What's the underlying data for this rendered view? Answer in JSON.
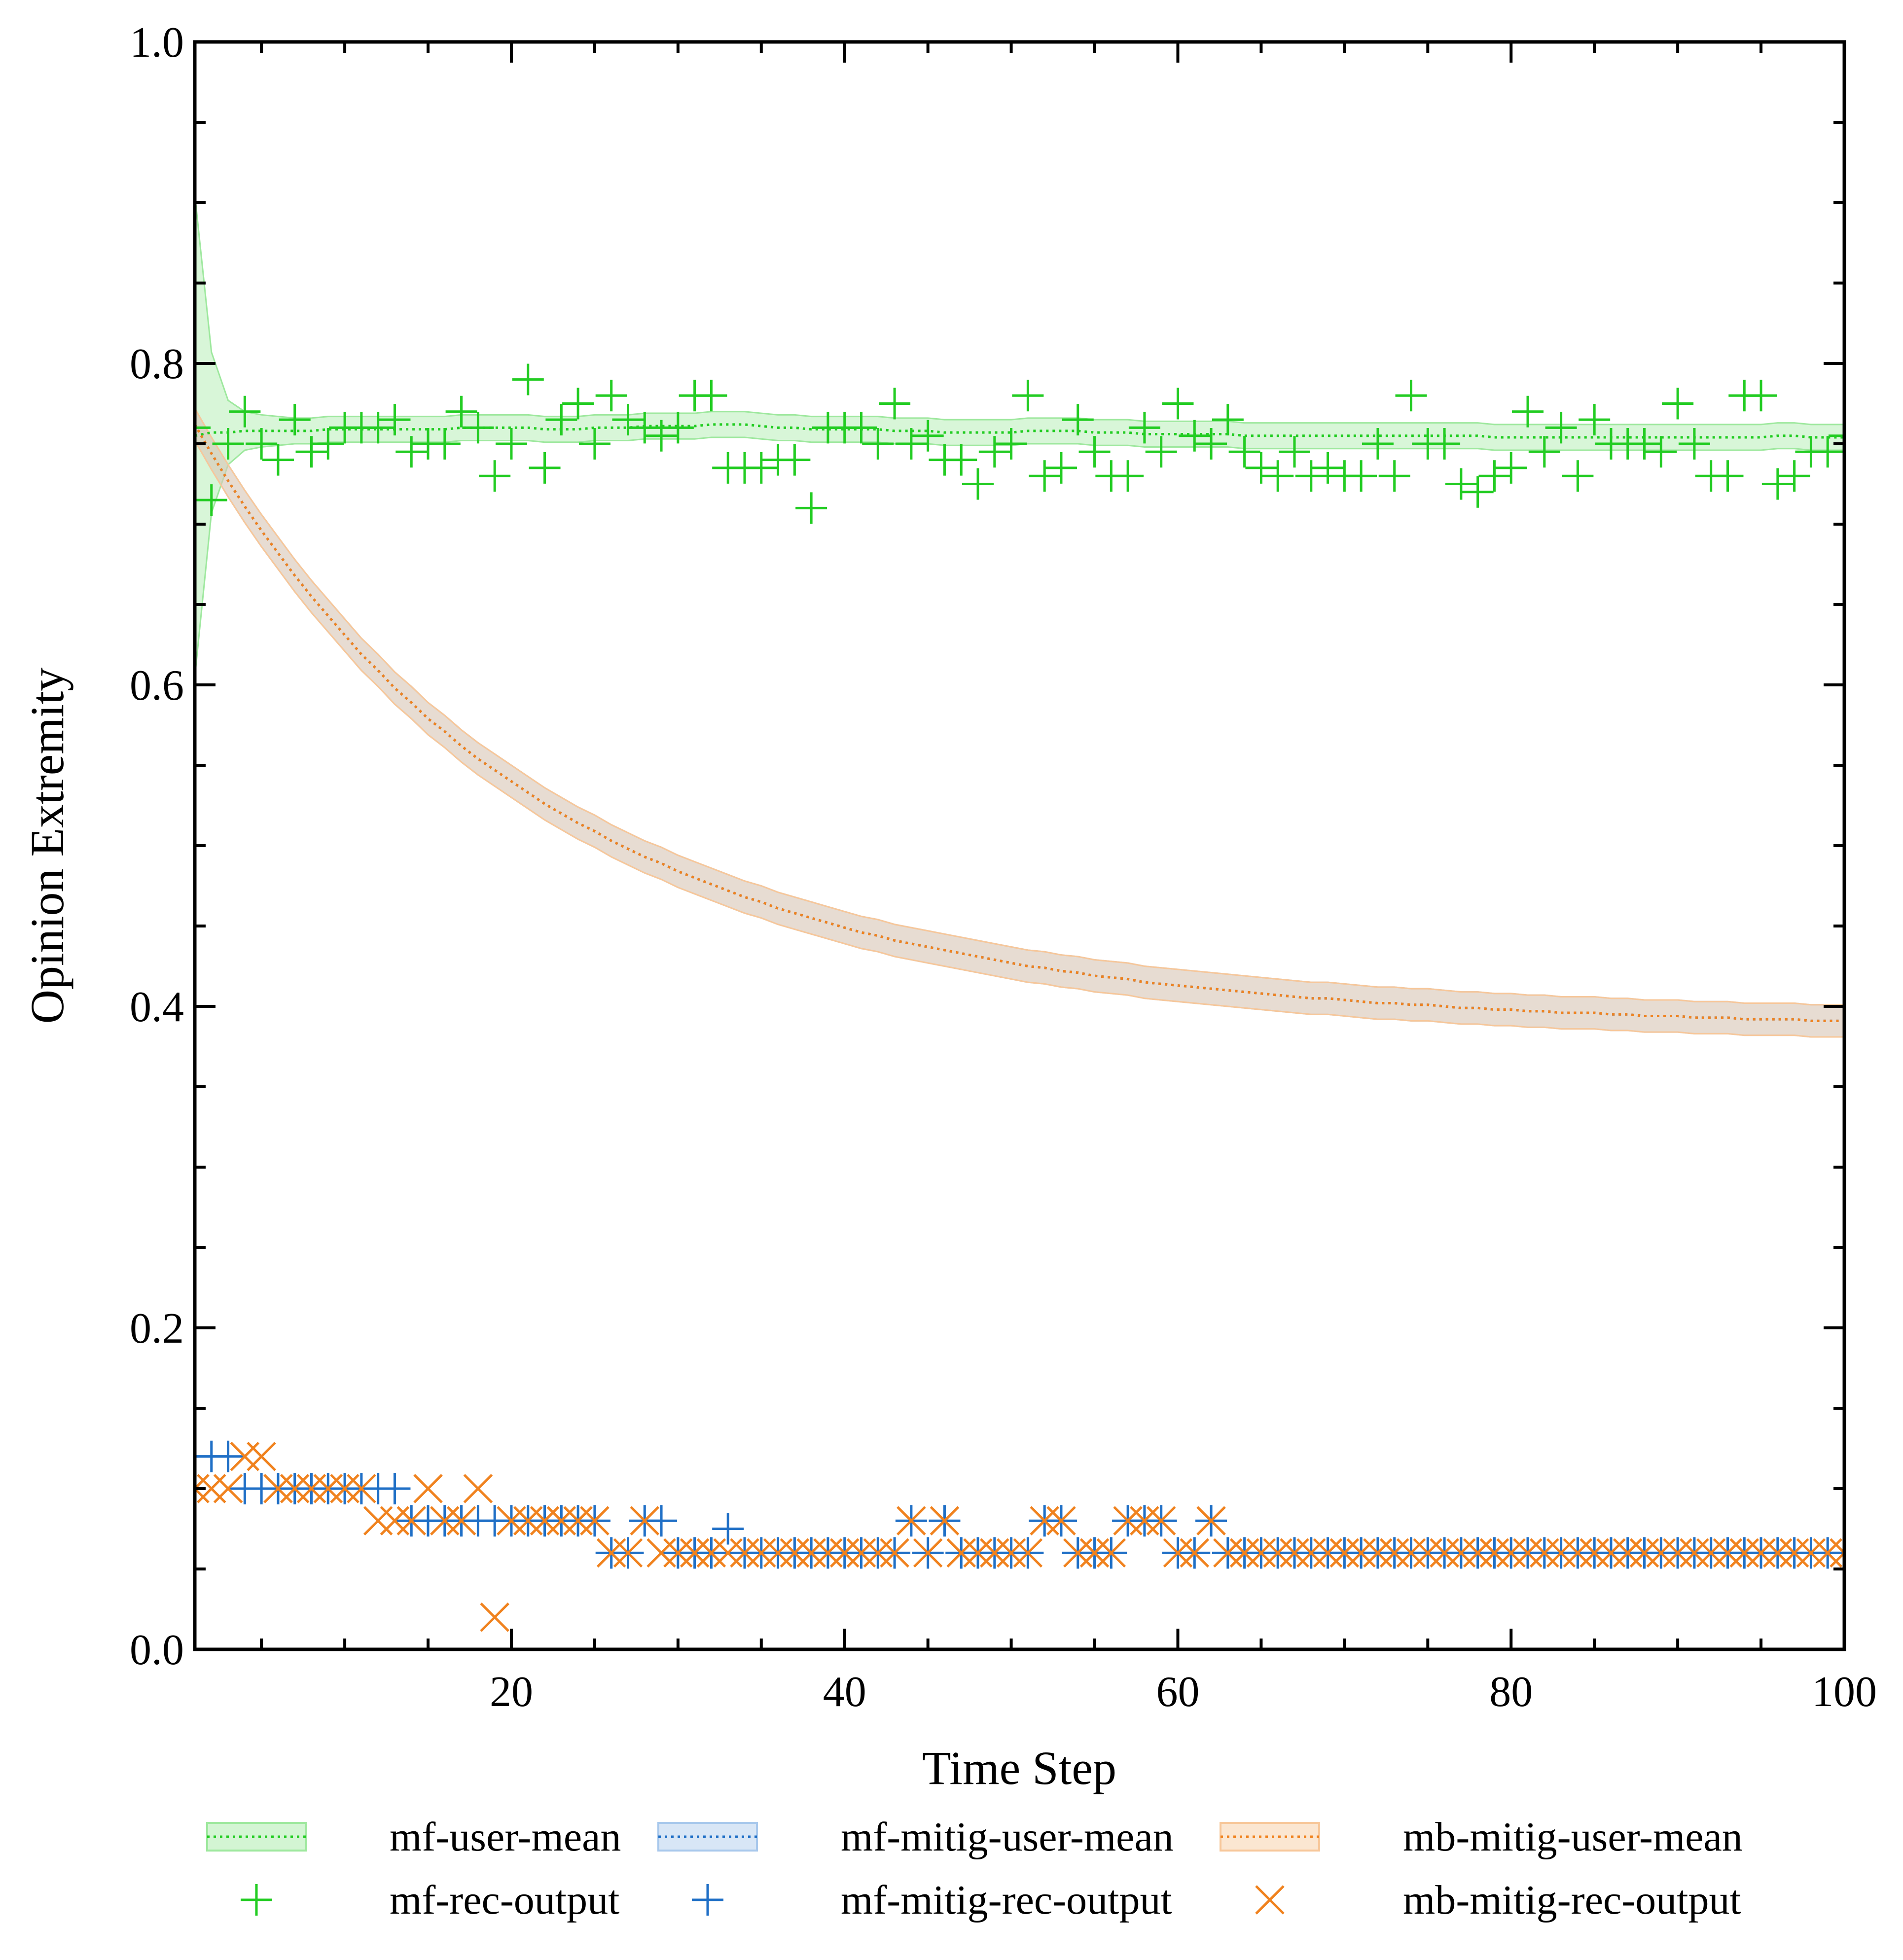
{
  "chart_data": {
    "type": "line",
    "xlabel": "Time Step",
    "ylabel": "Opinion Extremity",
    "xlim": [
      1,
      100
    ],
    "ylim": [
      0.0,
      1.0
    ],
    "xticks": [
      20,
      40,
      60,
      80,
      100
    ],
    "xtick_labels": [
      "20",
      "40",
      "60",
      "80",
      "100"
    ],
    "yticks": [
      0.0,
      0.2,
      0.4,
      0.6,
      0.8,
      1.0
    ],
    "ytick_labels": [
      "0.0",
      "0.2",
      "0.4",
      "0.6",
      "0.8",
      "1.0"
    ],
    "legend_position": "bottom",
    "legend": [
      {
        "label": "mf-user-mean",
        "kind": "band-line",
        "color": "#22cc22"
      },
      {
        "label": "mf-mitig-user-mean",
        "kind": "band-line",
        "color": "#1f6fc6"
      },
      {
        "label": "mb-mitig-user-mean",
        "kind": "band-line",
        "color": "#f0821e"
      },
      {
        "label": "mf-rec-output",
        "kind": "plus",
        "color": "#22cc22"
      },
      {
        "label": "mf-mitig-rec-output",
        "kind": "plus",
        "color": "#1f6fc6"
      },
      {
        "label": "mb-mitig-rec-output",
        "kind": "x",
        "color": "#f0821e"
      }
    ],
    "x": [
      1,
      2,
      3,
      4,
      5,
      6,
      7,
      8,
      9,
      10,
      11,
      12,
      13,
      14,
      15,
      16,
      17,
      18,
      19,
      20,
      21,
      22,
      23,
      24,
      25,
      26,
      27,
      28,
      29,
      30,
      31,
      32,
      33,
      34,
      35,
      36,
      37,
      38,
      39,
      40,
      41,
      42,
      43,
      44,
      45,
      46,
      47,
      48,
      49,
      50,
      51,
      52,
      53,
      54,
      55,
      56,
      57,
      58,
      59,
      60,
      61,
      62,
      63,
      64,
      65,
      66,
      67,
      68,
      69,
      70,
      71,
      72,
      73,
      74,
      75,
      76,
      77,
      78,
      79,
      80,
      81,
      82,
      83,
      84,
      85,
      86,
      87,
      88,
      89,
      90,
      91,
      92,
      93,
      94,
      95,
      96,
      97,
      98,
      99,
      100
    ],
    "series": [
      {
        "name": "mf-user-mean",
        "role": "mean-line",
        "color": "#22cc22",
        "band_color": "#9ee89e",
        "values": [
          0.755,
          0.757,
          0.757,
          0.758,
          0.758,
          0.758,
          0.758,
          0.758,
          0.759,
          0.759,
          0.759,
          0.759,
          0.759,
          0.759,
          0.759,
          0.759,
          0.76,
          0.76,
          0.76,
          0.76,
          0.76,
          0.759,
          0.759,
          0.759,
          0.76,
          0.76,
          0.76,
          0.761,
          0.761,
          0.761,
          0.761,
          0.762,
          0.762,
          0.762,
          0.761,
          0.76,
          0.76,
          0.759,
          0.759,
          0.759,
          0.759,
          0.759,
          0.758,
          0.758,
          0.758,
          0.757,
          0.757,
          0.757,
          0.757,
          0.757,
          0.758,
          0.758,
          0.758,
          0.758,
          0.757,
          0.757,
          0.757,
          0.756,
          0.756,
          0.756,
          0.756,
          0.756,
          0.756,
          0.755,
          0.755,
          0.755,
          0.755,
          0.755,
          0.755,
          0.755,
          0.755,
          0.755,
          0.755,
          0.755,
          0.755,
          0.755,
          0.755,
          0.755,
          0.754,
          0.754,
          0.754,
          0.754,
          0.754,
          0.754,
          0.754,
          0.754,
          0.754,
          0.754,
          0.754,
          0.754,
          0.754,
          0.754,
          0.754,
          0.754,
          0.754,
          0.755,
          0.755,
          0.754,
          0.754,
          0.754
        ],
        "band_halfwidth": [
          0.15,
          0.05,
          0.02,
          0.012,
          0.01,
          0.009,
          0.008,
          0.008,
          0.008,
          0.008,
          0.008,
          0.008,
          0.008,
          0.008,
          0.008,
          0.008,
          0.008,
          0.008,
          0.008,
          0.008,
          0.008,
          0.008,
          0.008,
          0.008,
          0.008,
          0.008,
          0.008,
          0.008,
          0.008,
          0.008,
          0.008,
          0.008,
          0.008,
          0.008,
          0.008,
          0.008,
          0.008,
          0.008,
          0.008,
          0.008,
          0.008,
          0.008,
          0.008,
          0.008,
          0.008,
          0.008,
          0.008,
          0.008,
          0.008,
          0.008,
          0.008,
          0.008,
          0.008,
          0.008,
          0.008,
          0.008,
          0.008,
          0.008,
          0.008,
          0.008,
          0.008,
          0.008,
          0.008,
          0.008,
          0.008,
          0.008,
          0.008,
          0.008,
          0.008,
          0.008,
          0.008,
          0.008,
          0.008,
          0.008,
          0.008,
          0.008,
          0.008,
          0.008,
          0.008,
          0.008,
          0.008,
          0.008,
          0.008,
          0.008,
          0.008,
          0.008,
          0.008,
          0.008,
          0.008,
          0.008,
          0.008,
          0.008,
          0.008,
          0.008,
          0.008,
          0.008,
          0.008,
          0.008,
          0.008,
          0.008
        ]
      },
      {
        "name": "mf-mitig-user-mean",
        "role": "mean-line",
        "color": "#1f6fc6",
        "band_color": "#a8c8ec",
        "values": [
          0.762,
          0.744,
          0.727,
          0.711,
          0.696,
          0.682,
          0.668,
          0.655,
          0.643,
          0.631,
          0.619,
          0.609,
          0.598,
          0.589,
          0.579,
          0.571,
          0.562,
          0.554,
          0.547,
          0.54,
          0.533,
          0.526,
          0.52,
          0.514,
          0.509,
          0.503,
          0.498,
          0.493,
          0.489,
          0.484,
          0.48,
          0.476,
          0.472,
          0.468,
          0.465,
          0.461,
          0.458,
          0.455,
          0.452,
          0.449,
          0.446,
          0.444,
          0.441,
          0.439,
          0.437,
          0.435,
          0.433,
          0.431,
          0.429,
          0.427,
          0.425,
          0.424,
          0.422,
          0.421,
          0.419,
          0.418,
          0.417,
          0.415,
          0.414,
          0.413,
          0.412,
          0.411,
          0.41,
          0.409,
          0.408,
          0.407,
          0.406,
          0.405,
          0.405,
          0.404,
          0.403,
          0.402,
          0.402,
          0.401,
          0.401,
          0.4,
          0.399,
          0.399,
          0.398,
          0.398,
          0.397,
          0.397,
          0.396,
          0.396,
          0.396,
          0.395,
          0.395,
          0.394,
          0.394,
          0.394,
          0.393,
          0.393,
          0.393,
          0.392,
          0.392,
          0.392,
          0.392,
          0.391,
          0.391,
          0.391
        ],
        "band_halfwidth": [
          0.01,
          0.01,
          0.01,
          0.01,
          0.01,
          0.01,
          0.01,
          0.01,
          0.01,
          0.01,
          0.01,
          0.01,
          0.01,
          0.01,
          0.01,
          0.01,
          0.01,
          0.01,
          0.01,
          0.01,
          0.01,
          0.01,
          0.01,
          0.01,
          0.01,
          0.01,
          0.01,
          0.01,
          0.01,
          0.01,
          0.01,
          0.01,
          0.01,
          0.01,
          0.01,
          0.01,
          0.01,
          0.01,
          0.01,
          0.01,
          0.01,
          0.01,
          0.01,
          0.01,
          0.01,
          0.01,
          0.01,
          0.01,
          0.01,
          0.01,
          0.01,
          0.01,
          0.01,
          0.01,
          0.01,
          0.01,
          0.01,
          0.01,
          0.01,
          0.01,
          0.01,
          0.01,
          0.01,
          0.01,
          0.01,
          0.01,
          0.01,
          0.01,
          0.01,
          0.01,
          0.01,
          0.01,
          0.01,
          0.01,
          0.01,
          0.01,
          0.01,
          0.01,
          0.01,
          0.01,
          0.01,
          0.01,
          0.01,
          0.01,
          0.01,
          0.01,
          0.01,
          0.01,
          0.01,
          0.01,
          0.01,
          0.01,
          0.01,
          0.01,
          0.01,
          0.01,
          0.01,
          0.01,
          0.01,
          0.01
        ]
      },
      {
        "name": "mb-mitig-user-mean",
        "role": "mean-line",
        "color": "#f0821e",
        "band_color": "#f7c79a",
        "values": [
          0.762,
          0.744,
          0.727,
          0.711,
          0.696,
          0.682,
          0.668,
          0.655,
          0.643,
          0.631,
          0.619,
          0.609,
          0.598,
          0.589,
          0.579,
          0.571,
          0.562,
          0.554,
          0.547,
          0.54,
          0.533,
          0.526,
          0.52,
          0.514,
          0.509,
          0.503,
          0.498,
          0.493,
          0.489,
          0.484,
          0.48,
          0.476,
          0.472,
          0.468,
          0.465,
          0.461,
          0.458,
          0.455,
          0.452,
          0.449,
          0.446,
          0.444,
          0.441,
          0.439,
          0.437,
          0.435,
          0.433,
          0.431,
          0.429,
          0.427,
          0.425,
          0.424,
          0.422,
          0.421,
          0.419,
          0.418,
          0.417,
          0.415,
          0.414,
          0.413,
          0.412,
          0.411,
          0.41,
          0.409,
          0.408,
          0.407,
          0.406,
          0.405,
          0.405,
          0.404,
          0.403,
          0.402,
          0.402,
          0.401,
          0.401,
          0.4,
          0.399,
          0.399,
          0.398,
          0.398,
          0.397,
          0.397,
          0.396,
          0.396,
          0.396,
          0.395,
          0.395,
          0.394,
          0.394,
          0.394,
          0.393,
          0.393,
          0.393,
          0.392,
          0.392,
          0.392,
          0.392,
          0.391,
          0.391,
          0.391
        ],
        "band_halfwidth": [
          0.01,
          0.01,
          0.01,
          0.01,
          0.01,
          0.01,
          0.01,
          0.01,
          0.01,
          0.01,
          0.01,
          0.01,
          0.01,
          0.01,
          0.01,
          0.01,
          0.01,
          0.01,
          0.01,
          0.01,
          0.01,
          0.01,
          0.01,
          0.01,
          0.01,
          0.01,
          0.01,
          0.01,
          0.01,
          0.01,
          0.01,
          0.01,
          0.01,
          0.01,
          0.01,
          0.01,
          0.01,
          0.01,
          0.01,
          0.01,
          0.01,
          0.01,
          0.01,
          0.01,
          0.01,
          0.01,
          0.01,
          0.01,
          0.01,
          0.01,
          0.01,
          0.01,
          0.01,
          0.01,
          0.01,
          0.01,
          0.01,
          0.01,
          0.01,
          0.01,
          0.01,
          0.01,
          0.01,
          0.01,
          0.01,
          0.01,
          0.01,
          0.01,
          0.01,
          0.01,
          0.01,
          0.01,
          0.01,
          0.01,
          0.01,
          0.01,
          0.01,
          0.01,
          0.01,
          0.01,
          0.01,
          0.01,
          0.01,
          0.01,
          0.01,
          0.01,
          0.01,
          0.01,
          0.01,
          0.01,
          0.01,
          0.01,
          0.01,
          0.01,
          0.01,
          0.01,
          0.01,
          0.01,
          0.01,
          0.01
        ]
      },
      {
        "name": "mf-rec-output",
        "role": "markers",
        "marker": "plus",
        "color": "#22cc22",
        "values": [
          0.76,
          0.715,
          0.75,
          0.77,
          0.75,
          0.74,
          0.765,
          0.745,
          0.75,
          0.76,
          0.76,
          0.76,
          0.765,
          0.745,
          0.75,
          0.75,
          0.77,
          0.76,
          0.73,
          0.75,
          0.79,
          0.735,
          0.765,
          0.775,
          0.75,
          0.78,
          0.765,
          0.76,
          0.755,
          0.76,
          0.78,
          0.78,
          0.735,
          0.735,
          0.735,
          0.74,
          0.74,
          0.71,
          0.76,
          0.76,
          0.76,
          0.75,
          0.775,
          0.75,
          0.755,
          0.74,
          0.74,
          0.725,
          0.745,
          0.75,
          0.78,
          0.73,
          0.735,
          0.765,
          0.745,
          0.73,
          0.73,
          0.76,
          0.745,
          0.775,
          0.755,
          0.75,
          0.765,
          0.745,
          0.735,
          0.73,
          0.745,
          0.73,
          0.735,
          0.73,
          0.73,
          0.75,
          0.73,
          0.78,
          0.75,
          0.75,
          0.725,
          0.72,
          0.73,
          0.735,
          0.77,
          0.745,
          0.76,
          0.73,
          0.765,
          0.75,
          0.75,
          0.75,
          0.745,
          0.775,
          0.75,
          0.73,
          0.73,
          0.78,
          0.78,
          0.725,
          0.73,
          0.745,
          0.745,
          0.755
        ]
      },
      {
        "name": "mf-mitig-rec-output",
        "role": "markers",
        "marker": "plus",
        "color": "#1f6fc6",
        "values": [
          0.12,
          0.12,
          0.12,
          0.1,
          0.1,
          0.1,
          0.1,
          0.1,
          0.1,
          0.1,
          0.1,
          0.1,
          0.1,
          0.08,
          0.08,
          0.08,
          0.08,
          0.08,
          0.08,
          0.08,
          0.08,
          0.08,
          0.08,
          0.08,
          0.08,
          0.06,
          0.06,
          0.08,
          0.08,
          0.06,
          0.06,
          0.06,
          0.075,
          0.06,
          0.06,
          0.06,
          0.06,
          0.06,
          0.06,
          0.06,
          0.06,
          0.06,
          0.06,
          0.08,
          0.06,
          0.08,
          0.06,
          0.06,
          0.06,
          0.06,
          0.06,
          0.08,
          0.08,
          0.06,
          0.06,
          0.06,
          0.08,
          0.08,
          0.08,
          0.06,
          0.06,
          0.08,
          0.06,
          0.06,
          0.06,
          0.06,
          0.06,
          0.06,
          0.06,
          0.06,
          0.06,
          0.06,
          0.06,
          0.06,
          0.06,
          0.06,
          0.06,
          0.06,
          0.06,
          0.06,
          0.06,
          0.06,
          0.06,
          0.06,
          0.06,
          0.06,
          0.06,
          0.06,
          0.06,
          0.06,
          0.06,
          0.06,
          0.06,
          0.06,
          0.06,
          0.06,
          0.06,
          0.06,
          0.06,
          0.06
        ]
      },
      {
        "name": "mb-mitig-rec-output",
        "role": "markers",
        "marker": "x",
        "color": "#f0821e",
        "values": [
          0.1,
          0.1,
          0.1,
          0.12,
          0.12,
          0.1,
          0.1,
          0.1,
          0.1,
          0.1,
          0.1,
          0.08,
          0.08,
          0.08,
          0.1,
          0.08,
          0.08,
          0.1,
          0.02,
          0.08,
          0.08,
          0.08,
          0.08,
          0.08,
          0.08,
          0.06,
          0.06,
          0.08,
          0.06,
          0.06,
          0.06,
          0.06,
          0.06,
          0.06,
          0.06,
          0.06,
          0.06,
          0.06,
          0.06,
          0.06,
          0.06,
          0.06,
          0.06,
          0.08,
          0.06,
          0.08,
          0.06,
          0.06,
          0.06,
          0.06,
          0.06,
          0.08,
          0.08,
          0.06,
          0.06,
          0.06,
          0.08,
          0.08,
          0.08,
          0.06,
          0.06,
          0.08,
          0.06,
          0.06,
          0.06,
          0.06,
          0.06,
          0.06,
          0.06,
          0.06,
          0.06,
          0.06,
          0.06,
          0.06,
          0.06,
          0.06,
          0.06,
          0.06,
          0.06,
          0.06,
          0.06,
          0.06,
          0.06,
          0.06,
          0.06,
          0.06,
          0.06,
          0.06,
          0.06,
          0.06,
          0.06,
          0.06,
          0.06,
          0.06,
          0.06,
          0.06,
          0.06,
          0.06,
          0.06,
          0.06
        ]
      }
    ]
  }
}
